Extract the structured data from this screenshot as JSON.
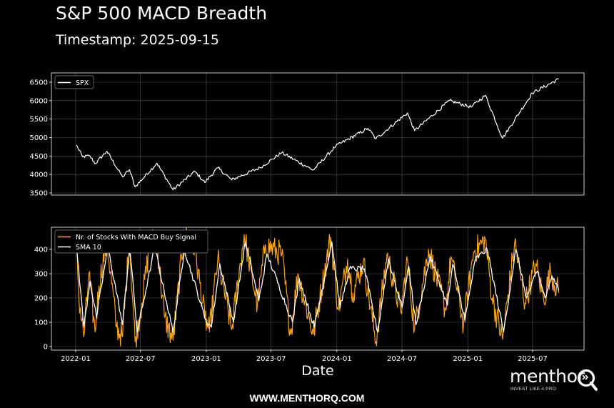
{
  "header": {
    "title": "S&P 500 MACD Breadth",
    "subtitle": "Timestamp: 2025-09-15"
  },
  "footer": {
    "url": "WWW.MENTHORQ.COM"
  },
  "logo": {
    "wordmark": "menthor",
    "tagline": "INVEST LIKE A PRO",
    "icon": "q-magnifier-icon"
  },
  "colors": {
    "background": "#000000",
    "spx": "#ffffff",
    "signal": "#f7a01c",
    "sma": "#ffffff",
    "grid": "#555555"
  },
  "chart_data": [
    {
      "type": "line",
      "xlabel": "",
      "ylabel": "",
      "ylim": [
        3450,
        6700
      ],
      "yticks": [
        3500,
        4000,
        4500,
        5000,
        5500,
        6000,
        6500
      ],
      "legend": {
        "placement": "top-left",
        "entries": [
          "SPX"
        ]
      },
      "grid": true,
      "series": [
        {
          "name": "SPX",
          "points": [
            [
              "2022-01-03",
              4796
            ],
            [
              "2022-01-20",
              4480
            ],
            [
              "2022-02-10",
              4500
            ],
            [
              "2022-02-24",
              4290
            ],
            [
              "2022-03-29",
              4630
            ],
            [
              "2022-05-12",
              3930
            ],
            [
              "2022-05-31",
              4130
            ],
            [
              "2022-06-16",
              3666
            ],
            [
              "2022-08-16",
              4305
            ],
            [
              "2022-09-30",
              3585
            ],
            [
              "2022-11-30",
              4080
            ],
            [
              "2022-12-28",
              3783
            ],
            [
              "2023-02-02",
              4180
            ],
            [
              "2023-03-13",
              3855
            ],
            [
              "2023-05-31",
              4180
            ],
            [
              "2023-07-31",
              4590
            ],
            [
              "2023-10-27",
              4117
            ],
            [
              "2023-12-29",
              4770
            ],
            [
              "2024-03-28",
              5250
            ],
            [
              "2024-04-19",
              4967
            ],
            [
              "2024-07-16",
              5667
            ],
            [
              "2024-08-05",
              5186
            ],
            [
              "2024-11-11",
              6001
            ],
            [
              "2025-01-10",
              5827
            ],
            [
              "2025-02-19",
              6144
            ],
            [
              "2025-04-08",
              4982
            ],
            [
              "2025-06-30",
              6205
            ],
            [
              "2025-09-12",
              6584
            ]
          ]
        }
      ]
    },
    {
      "type": "line",
      "xlabel": "Date",
      "ylabel": "",
      "ylim": [
        -20,
        490
      ],
      "yticks": [
        0,
        100,
        200,
        300,
        400
      ],
      "xticks": [
        "2022-01",
        "2022-07",
        "2023-01",
        "2023-07",
        "2024-01",
        "2024-07",
        "2025-01",
        "2025-07"
      ],
      "legend": {
        "placement": "top-left",
        "entries": [
          "Nr. of Stocks With MACD Buy Signal",
          "SMA 10"
        ]
      },
      "grid": true,
      "series": [
        {
          "name": "Nr. of Stocks With MACD Buy Signal",
          "points": [
            [
              "2022-01-03",
              440
            ],
            [
              "2022-01-10",
              200
            ],
            [
              "2022-01-24",
              40
            ],
            [
              "2022-02-07",
              300
            ],
            [
              "2022-02-24",
              60
            ],
            [
              "2022-03-07",
              250
            ],
            [
              "2022-03-29",
              440
            ],
            [
              "2022-04-25",
              80
            ],
            [
              "2022-05-12",
              40
            ],
            [
              "2022-05-31",
              440
            ],
            [
              "2022-06-16",
              20
            ],
            [
              "2022-07-05",
              180
            ],
            [
              "2022-07-29",
              440
            ],
            [
              "2022-08-16",
              430
            ],
            [
              "2022-09-06",
              120
            ],
            [
              "2022-09-30",
              25
            ],
            [
              "2022-10-31",
              460
            ],
            [
              "2022-11-30",
              400
            ],
            [
              "2022-12-28",
              120
            ],
            [
              "2023-01-10",
              60
            ],
            [
              "2023-02-02",
              360
            ],
            [
              "2023-03-13",
              70
            ],
            [
              "2023-04-17",
              460
            ],
            [
              "2023-05-24",
              170
            ],
            [
              "2023-06-15",
              420
            ],
            [
              "2023-07-31",
              380
            ],
            [
              "2023-08-25",
              50
            ],
            [
              "2023-09-14",
              300
            ],
            [
              "2023-10-27",
              50
            ],
            [
              "2023-12-15",
              450
            ],
            [
              "2024-01-05",
              150
            ],
            [
              "2024-01-31",
              360
            ],
            [
              "2024-02-15",
              220
            ],
            [
              "2024-03-15",
              350
            ],
            [
              "2024-04-19",
              20
            ],
            [
              "2024-05-20",
              380
            ],
            [
              "2024-06-28",
              140
            ],
            [
              "2024-07-16",
              360
            ],
            [
              "2024-08-05",
              70
            ],
            [
              "2024-09-13",
              400
            ],
            [
              "2024-10-31",
              150
            ],
            [
              "2024-11-15",
              370
            ],
            [
              "2024-12-20",
              90
            ],
            [
              "2025-01-17",
              390
            ],
            [
              "2025-02-19",
              440
            ],
            [
              "2025-03-10",
              200
            ],
            [
              "2025-04-08",
              30
            ],
            [
              "2025-05-12",
              430
            ],
            [
              "2025-06-10",
              180
            ],
            [
              "2025-07-10",
              340
            ],
            [
              "2025-08-01",
              190
            ],
            [
              "2025-08-20",
              310
            ],
            [
              "2025-09-12",
              220
            ]
          ]
        },
        {
          "name": "SMA 10",
          "points": [
            [
              "2022-01-03",
              420
            ],
            [
              "2022-01-24",
              80
            ],
            [
              "2022-02-10",
              270
            ],
            [
              "2022-02-28",
              120
            ],
            [
              "2022-04-01",
              410
            ],
            [
              "2022-05-12",
              90
            ],
            [
              "2022-06-01",
              410
            ],
            [
              "2022-06-22",
              60
            ],
            [
              "2022-08-10",
              410
            ],
            [
              "2022-09-30",
              60
            ],
            [
              "2022-11-01",
              400
            ],
            [
              "2022-12-30",
              110
            ],
            [
              "2023-01-15",
              80
            ],
            [
              "2023-02-08",
              340
            ],
            [
              "2023-03-18",
              100
            ],
            [
              "2023-04-20",
              430
            ],
            [
              "2023-05-28",
              190
            ],
            [
              "2023-06-20",
              380
            ],
            [
              "2023-08-30",
              100
            ],
            [
              "2023-09-18",
              280
            ],
            [
              "2023-10-30",
              80
            ],
            [
              "2023-12-18",
              430
            ],
            [
              "2024-01-10",
              160
            ],
            [
              "2024-02-05",
              320
            ],
            [
              "2024-03-18",
              320
            ],
            [
              "2024-04-24",
              60
            ],
            [
              "2024-05-24",
              360
            ],
            [
              "2024-07-01",
              160
            ],
            [
              "2024-07-20",
              330
            ],
            [
              "2024-08-09",
              90
            ],
            [
              "2024-09-18",
              370
            ],
            [
              "2024-11-05",
              170
            ],
            [
              "2024-11-20",
              340
            ],
            [
              "2024-12-24",
              110
            ],
            [
              "2025-01-22",
              360
            ],
            [
              "2025-02-24",
              400
            ],
            [
              "2025-04-11",
              60
            ],
            [
              "2025-05-15",
              400
            ],
            [
              "2025-06-14",
              200
            ],
            [
              "2025-07-14",
              310
            ],
            [
              "2025-08-05",
              200
            ],
            [
              "2025-08-24",
              290
            ],
            [
              "2025-09-12",
              230
            ]
          ]
        }
      ]
    }
  ]
}
